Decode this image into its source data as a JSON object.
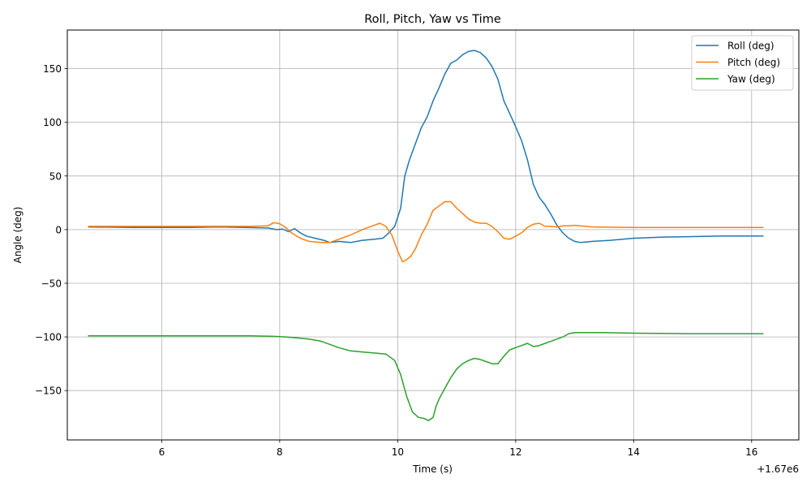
{
  "chart_data": {
    "type": "line",
    "title": "Roll, Pitch, Yaw vs Time",
    "xlabel": "Time (s)",
    "ylabel": "Angle (deg)",
    "x_offset_label": "+1.67e6",
    "xlim": [
      4.4,
      16.8
    ],
    "ylim": [
      -196,
      186
    ],
    "x_ticks": [
      6,
      8,
      10,
      12,
      14,
      16
    ],
    "x_tick_labels": [
      "6",
      "8",
      "10",
      "12",
      "14",
      "16"
    ],
    "y_ticks": [
      -150,
      -100,
      -50,
      0,
      50,
      100,
      150
    ],
    "y_tick_labels": [
      "−150",
      "−100",
      "−50",
      "0",
      "50",
      "100",
      "150"
    ],
    "grid": true,
    "legend_position": "top-right",
    "series": [
      {
        "name": "Roll (deg)",
        "color": "#1f77b4",
        "points": [
          [
            4.75,
            2.5
          ],
          [
            5.5,
            2
          ],
          [
            6.5,
            2
          ],
          [
            7.0,
            2.5
          ],
          [
            7.8,
            1.5
          ],
          [
            7.95,
            0
          ],
          [
            8.05,
            0.5
          ],
          [
            8.15,
            -2
          ],
          [
            8.25,
            1
          ],
          [
            8.35,
            -3
          ],
          [
            8.45,
            -6
          ],
          [
            8.6,
            -8
          ],
          [
            8.75,
            -10
          ],
          [
            8.85,
            -12
          ],
          [
            9.0,
            -11
          ],
          [
            9.2,
            -12
          ],
          [
            9.4,
            -10
          ],
          [
            9.6,
            -9
          ],
          [
            9.75,
            -8
          ],
          [
            9.85,
            -3
          ],
          [
            9.95,
            3
          ],
          [
            10.05,
            20
          ],
          [
            10.12,
            50
          ],
          [
            10.2,
            65
          ],
          [
            10.3,
            80
          ],
          [
            10.4,
            95
          ],
          [
            10.5,
            105
          ],
          [
            10.6,
            120
          ],
          [
            10.7,
            132
          ],
          [
            10.8,
            145
          ],
          [
            10.9,
            155
          ],
          [
            11.0,
            158
          ],
          [
            11.1,
            163
          ],
          [
            11.2,
            166
          ],
          [
            11.3,
            167
          ],
          [
            11.4,
            165
          ],
          [
            11.5,
            160
          ],
          [
            11.6,
            152
          ],
          [
            11.7,
            140
          ],
          [
            11.8,
            120
          ],
          [
            11.9,
            108
          ],
          [
            12.0,
            96
          ],
          [
            12.1,
            83
          ],
          [
            12.2,
            65
          ],
          [
            12.3,
            42
          ],
          [
            12.4,
            30
          ],
          [
            12.5,
            23
          ],
          [
            12.6,
            14
          ],
          [
            12.7,
            4
          ],
          [
            12.8,
            -3
          ],
          [
            12.9,
            -8
          ],
          [
            13.0,
            -11
          ],
          [
            13.1,
            -12
          ],
          [
            13.3,
            -11
          ],
          [
            13.6,
            -10
          ],
          [
            14.0,
            -8
          ],
          [
            14.5,
            -7
          ],
          [
            15.0,
            -6.5
          ],
          [
            15.5,
            -6
          ],
          [
            16.0,
            -6
          ],
          [
            16.2,
            -6
          ]
        ]
      },
      {
        "name": "Pitch (deg)",
        "color": "#ff7f0e",
        "points": [
          [
            4.75,
            3
          ],
          [
            5.5,
            3
          ],
          [
            6.5,
            3
          ],
          [
            7.5,
            3
          ],
          [
            7.8,
            3.5
          ],
          [
            7.9,
            6.5
          ],
          [
            8.0,
            5.5
          ],
          [
            8.1,
            2
          ],
          [
            8.2,
            -3
          ],
          [
            8.35,
            -8
          ],
          [
            8.5,
            -11
          ],
          [
            8.7,
            -12
          ],
          [
            8.85,
            -12
          ],
          [
            9.0,
            -9
          ],
          [
            9.2,
            -5
          ],
          [
            9.4,
            0
          ],
          [
            9.55,
            3
          ],
          [
            9.7,
            6
          ],
          [
            9.8,
            3
          ],
          [
            9.9,
            -5
          ],
          [
            10.0,
            -20
          ],
          [
            10.08,
            -30
          ],
          [
            10.15,
            -28
          ],
          [
            10.22,
            -25
          ],
          [
            10.3,
            -18
          ],
          [
            10.4,
            -5
          ],
          [
            10.5,
            5
          ],
          [
            10.6,
            18
          ],
          [
            10.7,
            22
          ],
          [
            10.8,
            26
          ],
          [
            10.9,
            26
          ],
          [
            11.0,
            20
          ],
          [
            11.1,
            15
          ],
          [
            11.2,
            10
          ],
          [
            11.3,
            7
          ],
          [
            11.4,
            6
          ],
          [
            11.5,
            6
          ],
          [
            11.6,
            3
          ],
          [
            11.7,
            -2
          ],
          [
            11.8,
            -8
          ],
          [
            11.9,
            -9
          ],
          [
            12.0,
            -6
          ],
          [
            12.1,
            -3
          ],
          [
            12.2,
            2
          ],
          [
            12.3,
            5
          ],
          [
            12.4,
            6
          ],
          [
            12.5,
            3
          ],
          [
            12.6,
            3
          ],
          [
            12.7,
            2.5
          ],
          [
            12.8,
            3.5
          ],
          [
            12.9,
            3.5
          ],
          [
            13.0,
            4
          ],
          [
            13.3,
            2.5
          ],
          [
            14.0,
            2
          ],
          [
            15.0,
            2
          ],
          [
            16.0,
            2
          ],
          [
            16.2,
            2
          ]
        ]
      },
      {
        "name": "Yaw (deg)",
        "color": "#2ca02c",
        "points": [
          [
            4.75,
            -99
          ],
          [
            5.5,
            -99
          ],
          [
            6.5,
            -99
          ],
          [
            7.5,
            -99
          ],
          [
            7.9,
            -99.5
          ],
          [
            8.1,
            -100
          ],
          [
            8.3,
            -101
          ],
          [
            8.5,
            -102
          ],
          [
            8.7,
            -104
          ],
          [
            8.85,
            -107
          ],
          [
            9.0,
            -110
          ],
          [
            9.2,
            -113
          ],
          [
            9.4,
            -114
          ],
          [
            9.6,
            -115
          ],
          [
            9.8,
            -116
          ],
          [
            9.95,
            -122
          ],
          [
            10.05,
            -135
          ],
          [
            10.15,
            -155
          ],
          [
            10.25,
            -170
          ],
          [
            10.35,
            -175
          ],
          [
            10.45,
            -176
          ],
          [
            10.52,
            -178
          ],
          [
            10.6,
            -175
          ],
          [
            10.65,
            -165
          ],
          [
            10.7,
            -158
          ],
          [
            10.8,
            -148
          ],
          [
            10.9,
            -138
          ],
          [
            11.0,
            -130
          ],
          [
            11.1,
            -125
          ],
          [
            11.2,
            -122
          ],
          [
            11.3,
            -120
          ],
          [
            11.4,
            -121
          ],
          [
            11.5,
            -123
          ],
          [
            11.6,
            -125
          ],
          [
            11.7,
            -125
          ],
          [
            11.8,
            -118
          ],
          [
            11.9,
            -112
          ],
          [
            12.0,
            -110
          ],
          [
            12.1,
            -108
          ],
          [
            12.2,
            -106
          ],
          [
            12.3,
            -109
          ],
          [
            12.4,
            -108
          ],
          [
            12.5,
            -106
          ],
          [
            12.6,
            -104
          ],
          [
            12.7,
            -102
          ],
          [
            12.8,
            -100
          ],
          [
            12.9,
            -97
          ],
          [
            13.0,
            -96
          ],
          [
            13.2,
            -96
          ],
          [
            13.5,
            -96
          ],
          [
            14.0,
            -96.5
          ],
          [
            15.0,
            -97
          ],
          [
            16.0,
            -97
          ],
          [
            16.2,
            -97
          ]
        ]
      }
    ]
  }
}
